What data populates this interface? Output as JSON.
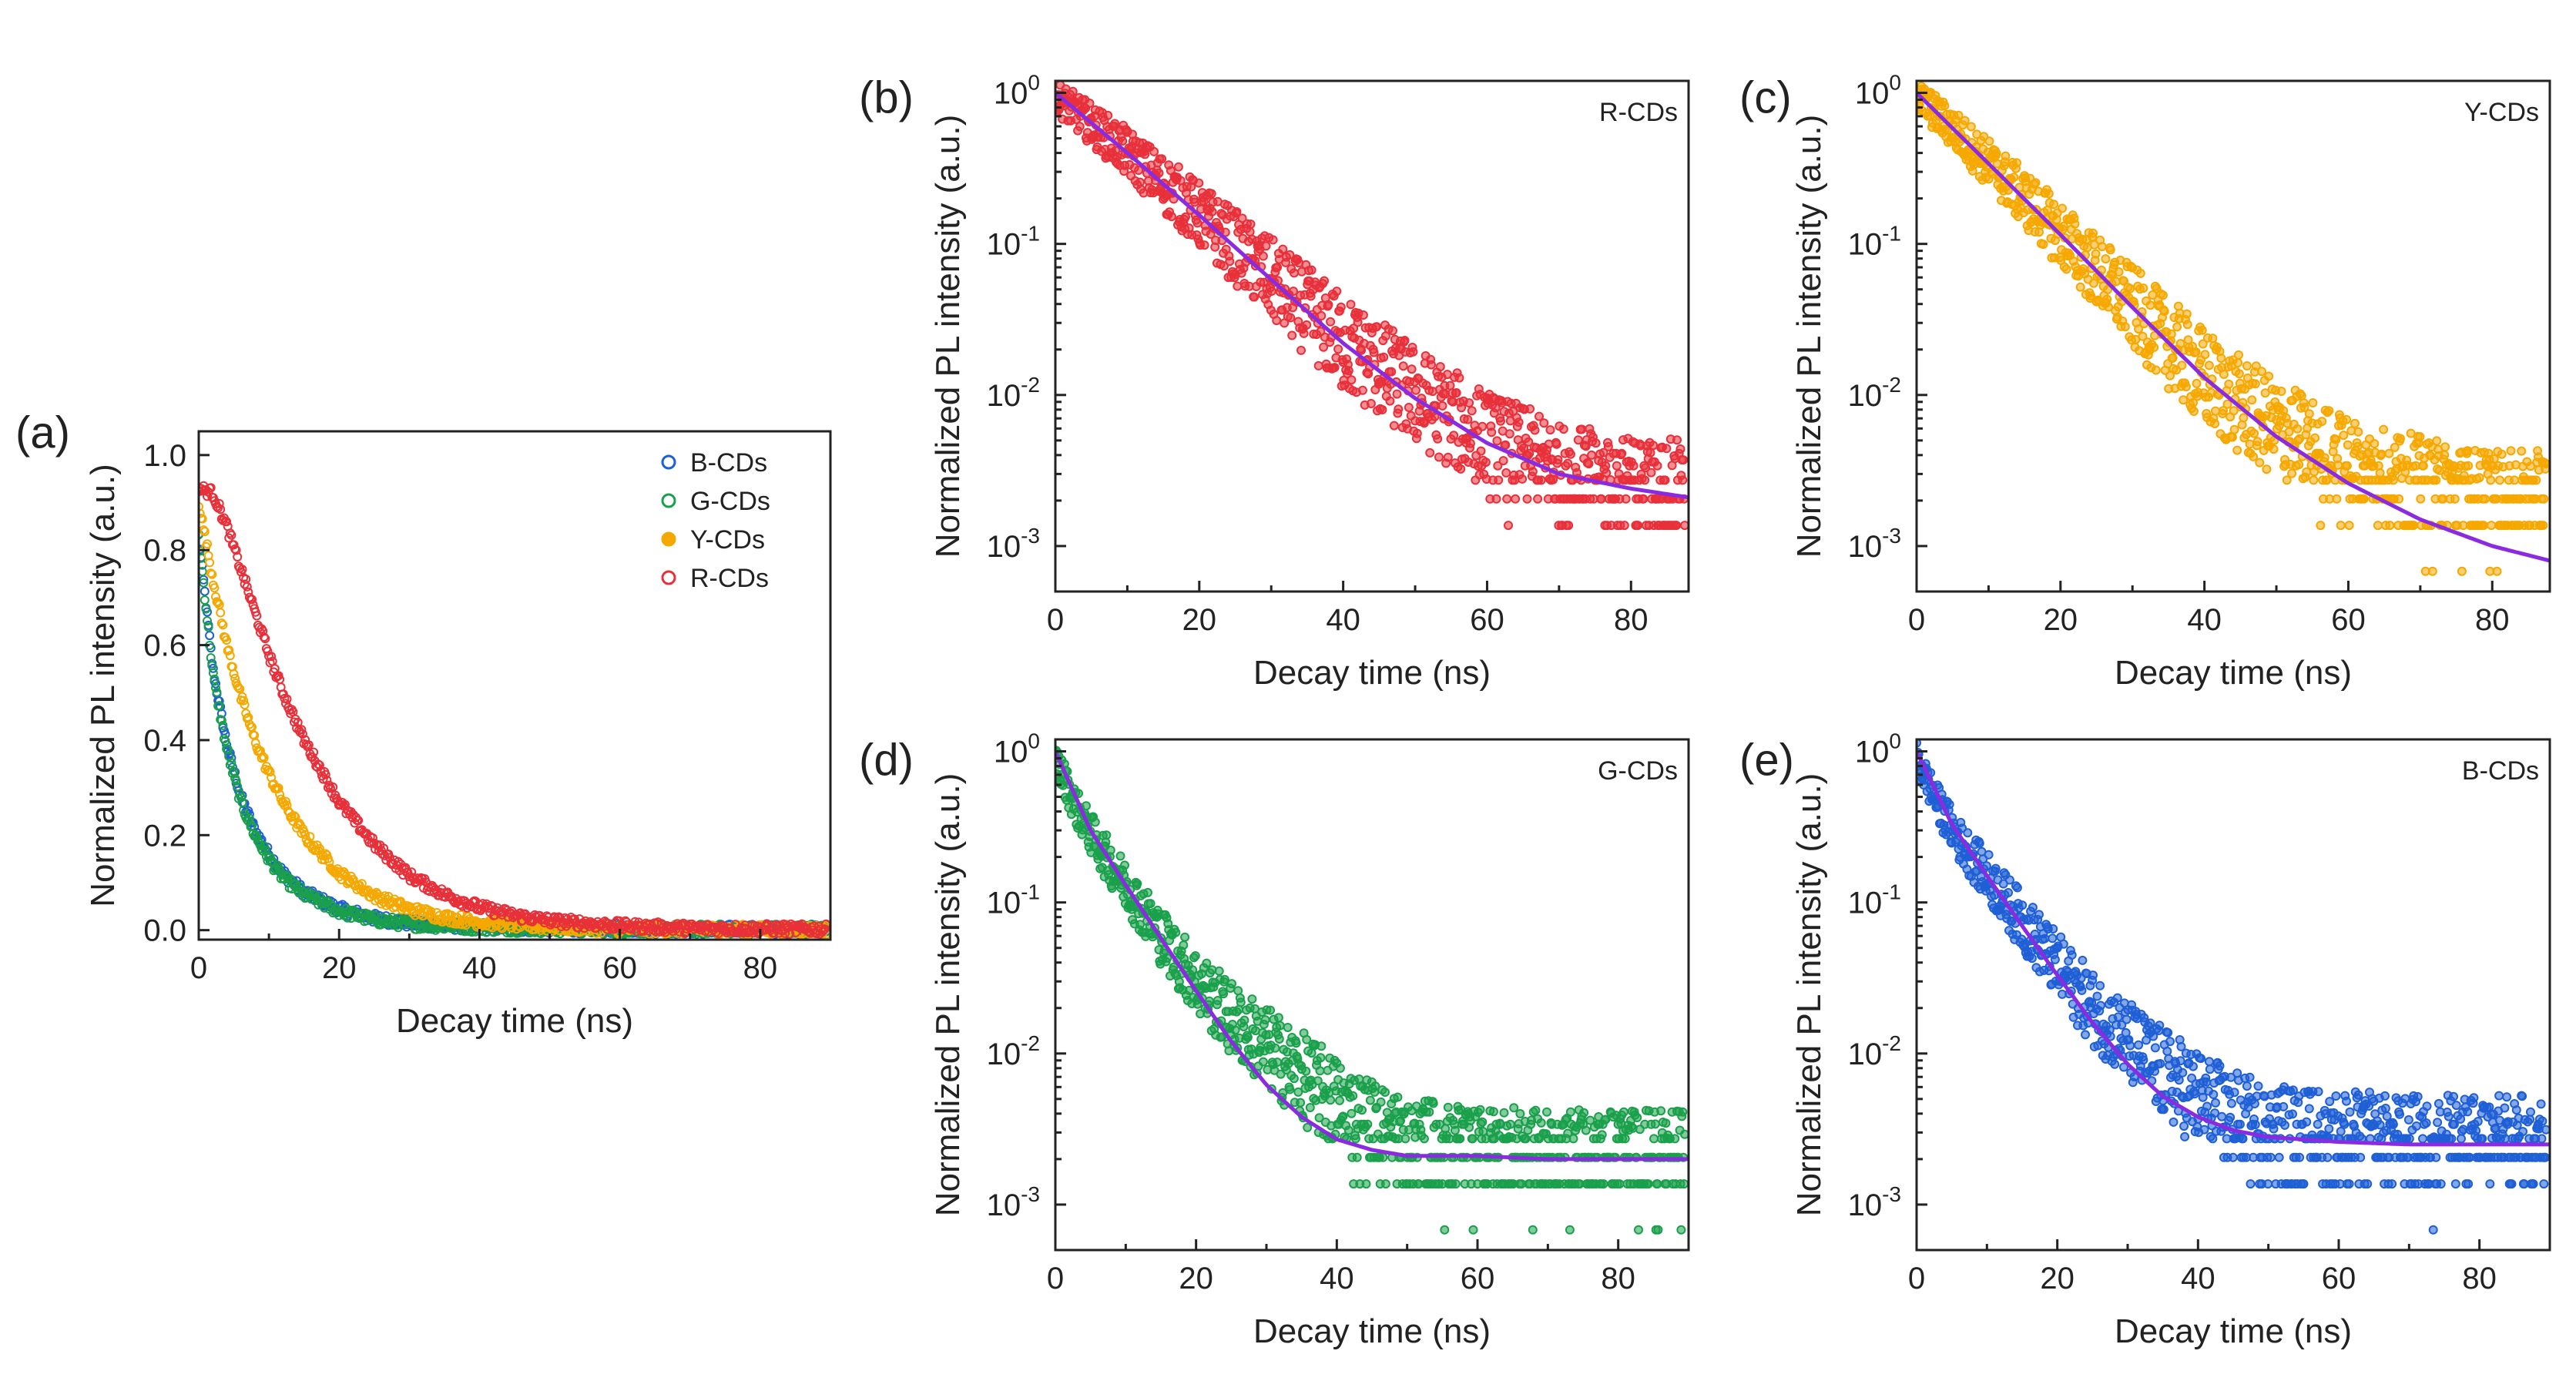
{
  "colors": {
    "B-CDs": "#1f5fd6",
    "G-CDs": "#1aa04a",
    "Y-CDs": "#f5a800",
    "R-CDs": "#e8303a",
    "fit": "#8a2be2"
  },
  "chart_data": [
    {
      "id": "a",
      "panel_label": "(a)",
      "type": "scatter",
      "yscale": "linear",
      "xlabel": "Decay time (ns)",
      "ylabel": "Normalized PL intensity (a.u.)",
      "xlim": [
        0,
        90
      ],
      "ylim": [
        -0.02,
        1.05
      ],
      "xticks": [
        0,
        20,
        40,
        60,
        80
      ],
      "xtick_labels": [
        "0",
        "20",
        "40",
        "60",
        "80"
      ],
      "yticks": [
        0.0,
        0.2,
        0.4,
        0.6,
        0.8,
        1.0
      ],
      "ytick_labels": [
        "0.0",
        "0.2",
        "0.4",
        "0.6",
        "0.8",
        "1.0"
      ],
      "legend_position": "top-right",
      "series": [
        {
          "name": "B-CDs",
          "color": "#1f5fd6",
          "marker": "open-circle",
          "x": [
            0,
            2,
            4,
            6,
            8,
            10,
            12,
            15,
            20,
            25,
            30,
            40,
            50,
            60,
            70,
            80,
            88
          ],
          "y": [
            0.83,
            0.55,
            0.39,
            0.28,
            0.21,
            0.16,
            0.12,
            0.08,
            0.045,
            0.025,
            0.015,
            0.007,
            0.004,
            0.003,
            0.002,
            0.002,
            0.002
          ]
        },
        {
          "name": "G-CDs",
          "color": "#1aa04a",
          "marker": "open-circle",
          "x": [
            0,
            2,
            4,
            6,
            8,
            10,
            12,
            15,
            20,
            25,
            30,
            40,
            50,
            60,
            70,
            80,
            88
          ],
          "y": [
            0.83,
            0.54,
            0.38,
            0.27,
            0.2,
            0.15,
            0.11,
            0.075,
            0.04,
            0.022,
            0.013,
            0.006,
            0.003,
            0.002,
            0.002,
            0.002,
            0.002
          ]
        },
        {
          "name": "Y-CDs",
          "color": "#f5a800",
          "marker": "open-circle",
          "x": [
            0,
            2,
            4,
            6,
            8,
            10,
            12,
            15,
            20,
            25,
            30,
            35,
            40,
            50,
            60,
            70,
            80,
            88
          ],
          "y": [
            0.9,
            0.74,
            0.6,
            0.49,
            0.4,
            0.33,
            0.27,
            0.2,
            0.12,
            0.072,
            0.044,
            0.027,
            0.017,
            0.007,
            0.003,
            0.002,
            0.001,
            0.001
          ]
        },
        {
          "name": "R-CDs",
          "color": "#e8303a",
          "marker": "open-circle",
          "x": [
            0,
            2,
            4,
            6,
            8,
            10,
            12,
            15,
            20,
            25,
            30,
            35,
            40,
            45,
            50,
            60,
            70,
            80,
            88
          ],
          "y": [
            0.93,
            0.92,
            0.85,
            0.76,
            0.67,
            0.58,
            0.5,
            0.4,
            0.27,
            0.18,
            0.115,
            0.075,
            0.048,
            0.031,
            0.02,
            0.009,
            0.004,
            0.003,
            0.002
          ]
        }
      ]
    },
    {
      "id": "b",
      "panel_label": "(b)",
      "type": "scatter",
      "yscale": "log",
      "xlabel": "Decay time (ns)",
      "ylabel": "Normalized PL intensity (a.u.)",
      "xlim": [
        0,
        88
      ],
      "ylim": [
        0.0005,
        1.2
      ],
      "xticks": [
        0,
        20,
        40,
        60,
        80
      ],
      "xtick_labels": [
        "0",
        "20",
        "40",
        "60",
        "80"
      ],
      "yticks": [
        0.001,
        0.01,
        0.1,
        1
      ],
      "ytick_base": [
        "10",
        "10",
        "10",
        "10"
      ],
      "ytick_exp": [
        "-3",
        "-2",
        "-1",
        "0"
      ],
      "sample_label": "R-CDs",
      "series": [
        {
          "name": "R-CDs",
          "color": "#e8303a",
          "marker": "open-circle",
          "x": [
            0,
            5,
            10,
            15,
            20,
            25,
            30,
            35,
            40,
            45,
            50,
            55,
            60,
            65,
            70,
            75,
            80,
            85
          ],
          "y": [
            0.95,
            0.62,
            0.4,
            0.25,
            0.155,
            0.095,
            0.058,
            0.036,
            0.022,
            0.015,
            0.01,
            0.007,
            0.005,
            0.004,
            0.003,
            0.0028,
            0.0025,
            0.0024
          ]
        },
        {
          "name": "fit",
          "color": "#8a2be2",
          "style": "line",
          "x": [
            0,
            10,
            20,
            30,
            40,
            50,
            60,
            70,
            80,
            88
          ],
          "y": [
            1.0,
            0.4,
            0.155,
            0.058,
            0.022,
            0.0095,
            0.0048,
            0.003,
            0.0024,
            0.0021
          ]
        }
      ]
    },
    {
      "id": "c",
      "panel_label": "(c)",
      "type": "scatter",
      "yscale": "log",
      "xlabel": "Decay time (ns)",
      "ylabel": "Normalized PL intensity (a.u.)",
      "xlim": [
        0,
        88
      ],
      "ylim": [
        0.0005,
        1.2
      ],
      "xticks": [
        0,
        20,
        40,
        60,
        80
      ],
      "xtick_labels": [
        "0",
        "20",
        "40",
        "60",
        "80"
      ],
      "yticks": [
        0.001,
        0.01,
        0.1,
        1
      ],
      "ytick_base": [
        "10",
        "10",
        "10",
        "10"
      ],
      "ytick_exp": [
        "-3",
        "-2",
        "-1",
        "0"
      ],
      "sample_label": "Y-CDs",
      "series": [
        {
          "name": "Y-CDs",
          "color": "#f5a800",
          "marker": "open-circle",
          "x": [
            0,
            5,
            10,
            15,
            20,
            25,
            30,
            35,
            40,
            45,
            50,
            55,
            60,
            65,
            70,
            75,
            80,
            85
          ],
          "y": [
            0.95,
            0.58,
            0.34,
            0.2,
            0.115,
            0.066,
            0.038,
            0.022,
            0.013,
            0.0085,
            0.006,
            0.0045,
            0.0035,
            0.003,
            0.0025,
            0.0022,
            0.002,
            0.002
          ]
        },
        {
          "name": "fit",
          "color": "#8a2be2",
          "style": "line",
          "x": [
            0,
            10,
            20,
            30,
            40,
            50,
            60,
            70,
            80,
            88
          ],
          "y": [
            1.0,
            0.34,
            0.115,
            0.038,
            0.013,
            0.0053,
            0.0026,
            0.0015,
            0.001,
            0.0008
          ]
        }
      ]
    },
    {
      "id": "d",
      "panel_label": "(d)",
      "type": "scatter",
      "yscale": "log",
      "xlabel": "Decay time (ns)",
      "ylabel": "Normalized PL intensity (a.u.)",
      "xlim": [
        0,
        90
      ],
      "ylim": [
        0.0005,
        1.2
      ],
      "xticks": [
        0,
        20,
        40,
        60,
        80
      ],
      "xtick_labels": [
        "0",
        "20",
        "40",
        "60",
        "80"
      ],
      "yticks": [
        0.001,
        0.01,
        0.1,
        1
      ],
      "ytick_base": [
        "10",
        "10",
        "10",
        "10"
      ],
      "ytick_exp": [
        "-3",
        "-2",
        "-1",
        "0"
      ],
      "sample_label": "G-CDs",
      "series": [
        {
          "name": "G-CDs",
          "color": "#1aa04a",
          "marker": "open-circle",
          "x": [
            0,
            3,
            6,
            10,
            15,
            20,
            25,
            30,
            35,
            40,
            45,
            50,
            60,
            70,
            80,
            90
          ],
          "y": [
            0.9,
            0.42,
            0.24,
            0.13,
            0.06,
            0.03,
            0.017,
            0.011,
            0.007,
            0.0045,
            0.0032,
            0.0025,
            0.0021,
            0.002,
            0.002,
            0.002
          ]
        },
        {
          "name": "fit",
          "color": "#8a2be2",
          "style": "line",
          "x": [
            0,
            5,
            10,
            15,
            20,
            25,
            30,
            35,
            40,
            45,
            50,
            60,
            70,
            80,
            90
          ],
          "y": [
            1.0,
            0.3,
            0.13,
            0.058,
            0.026,
            0.012,
            0.0062,
            0.0038,
            0.0027,
            0.0023,
            0.0021,
            0.0021,
            0.002,
            0.002,
            0.002
          ]
        }
      ]
    },
    {
      "id": "e",
      "panel_label": "(e)",
      "type": "scatter",
      "yscale": "log",
      "xlabel": "Decay time (ns)",
      "ylabel": "Normalized PL intensity (a.u.)",
      "xlim": [
        0,
        90
      ],
      "ylim": [
        0.0005,
        1.2
      ],
      "xticks": [
        0,
        20,
        40,
        60,
        80
      ],
      "xtick_labels": [
        "0",
        "20",
        "40",
        "60",
        "80"
      ],
      "yticks": [
        0.001,
        0.01,
        0.1,
        1
      ],
      "ytick_base": [
        "10",
        "10",
        "10",
        "10"
      ],
      "ytick_exp": [
        "-3",
        "-2",
        "-1",
        "0"
      ],
      "sample_label": "B-CDs",
      "series": [
        {
          "name": "B-CDs",
          "color": "#1f5fd6",
          "marker": "open-circle",
          "x": [
            0,
            3,
            6,
            10,
            15,
            20,
            25,
            30,
            35,
            40,
            45,
            50,
            60,
            70,
            80,
            90
          ],
          "y": [
            0.9,
            0.45,
            0.26,
            0.15,
            0.075,
            0.038,
            0.02,
            0.012,
            0.0075,
            0.005,
            0.0036,
            0.003,
            0.0027,
            0.0025,
            0.0025,
            0.0025
          ]
        },
        {
          "name": "fit",
          "color": "#8a2be2",
          "style": "line",
          "x": [
            0,
            5,
            10,
            15,
            20,
            25,
            30,
            35,
            40,
            45,
            50,
            60,
            70,
            80,
            90
          ],
          "y": [
            1.0,
            0.33,
            0.15,
            0.07,
            0.033,
            0.016,
            0.0085,
            0.0052,
            0.0038,
            0.0031,
            0.0028,
            0.0026,
            0.0025,
            0.0025,
            0.0025
          ]
        }
      ]
    }
  ]
}
